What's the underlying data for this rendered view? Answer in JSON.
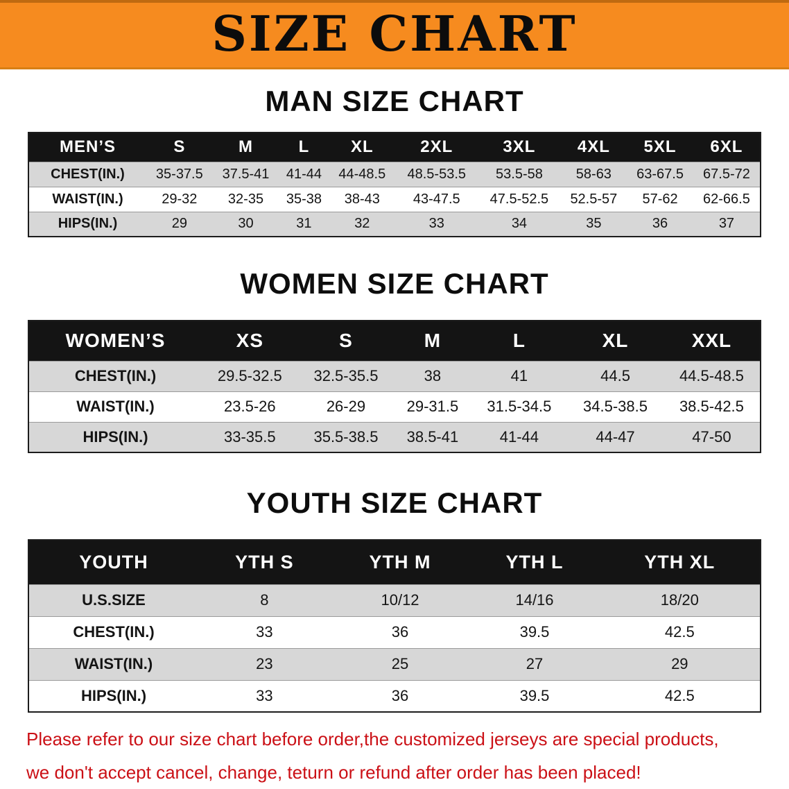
{
  "banner": {
    "title": "SIZE CHART"
  },
  "chart_data": [
    {
      "type": "table",
      "title": "MAN SIZE CHART",
      "columns": [
        "MEN’S",
        "S",
        "M",
        "L",
        "XL",
        "2XL",
        "3XL",
        "4XL",
        "5XL",
        "6XL"
      ],
      "rows": [
        [
          "CHEST(IN.)",
          "35-37.5",
          "37.5-41",
          "41-44",
          "44-48.5",
          "48.5-53.5",
          "53.5-58",
          "58-63",
          "63-67.5",
          "67.5-72"
        ],
        [
          "WAIST(IN.)",
          "29-32",
          "32-35",
          "35-38",
          "38-43",
          "43-47.5",
          "47.5-52.5",
          "52.5-57",
          "57-62",
          "62-66.5"
        ],
        [
          "HIPS(IN.)",
          "29",
          "30",
          "31",
          "32",
          "33",
          "34",
          "35",
          "36",
          "37"
        ]
      ]
    },
    {
      "type": "table",
      "title": "WOMEN SIZE CHART",
      "columns": [
        "WOMEN’S",
        "XS",
        "S",
        "M",
        "L",
        "XL",
        "XXL"
      ],
      "rows": [
        [
          "CHEST(IN.)",
          "29.5-32.5",
          "32.5-35.5",
          "38",
          "41",
          "44.5",
          "44.5-48.5"
        ],
        [
          "WAIST(IN.)",
          "23.5-26",
          "26-29",
          "29-31.5",
          "31.5-34.5",
          "34.5-38.5",
          "38.5-42.5"
        ],
        [
          "HIPS(IN.)",
          "33-35.5",
          "35.5-38.5",
          "38.5-41",
          "41-44",
          "44-47",
          "47-50"
        ]
      ]
    },
    {
      "type": "table",
      "title": "YOUTH SIZE CHART",
      "columns": [
        "YOUTH",
        "YTH S",
        "YTH M",
        "YTH L",
        "YTH XL"
      ],
      "rows": [
        [
          "U.S.SIZE",
          "8",
          "10/12",
          "14/16",
          "18/20"
        ],
        [
          "CHEST(IN.)",
          "33",
          "36",
          "39.5",
          "42.5"
        ],
        [
          "WAIST(IN.)",
          "23",
          "25",
          "27",
          "29"
        ],
        [
          "HIPS(IN.)",
          "33",
          "36",
          "39.5",
          "42.5"
        ]
      ]
    }
  ],
  "footer": {
    "line1": "Please refer to our size chart before order,the customized jerseys are special products,",
    "line2": "we don't accept cancel, change, teturn or refund after order has been placed!"
  },
  "colors": {
    "banner_bg": "#f68b1f",
    "table_header_bg": "#141414",
    "row_shade": "#d7d7d7",
    "footer_text": "#cb1016"
  }
}
